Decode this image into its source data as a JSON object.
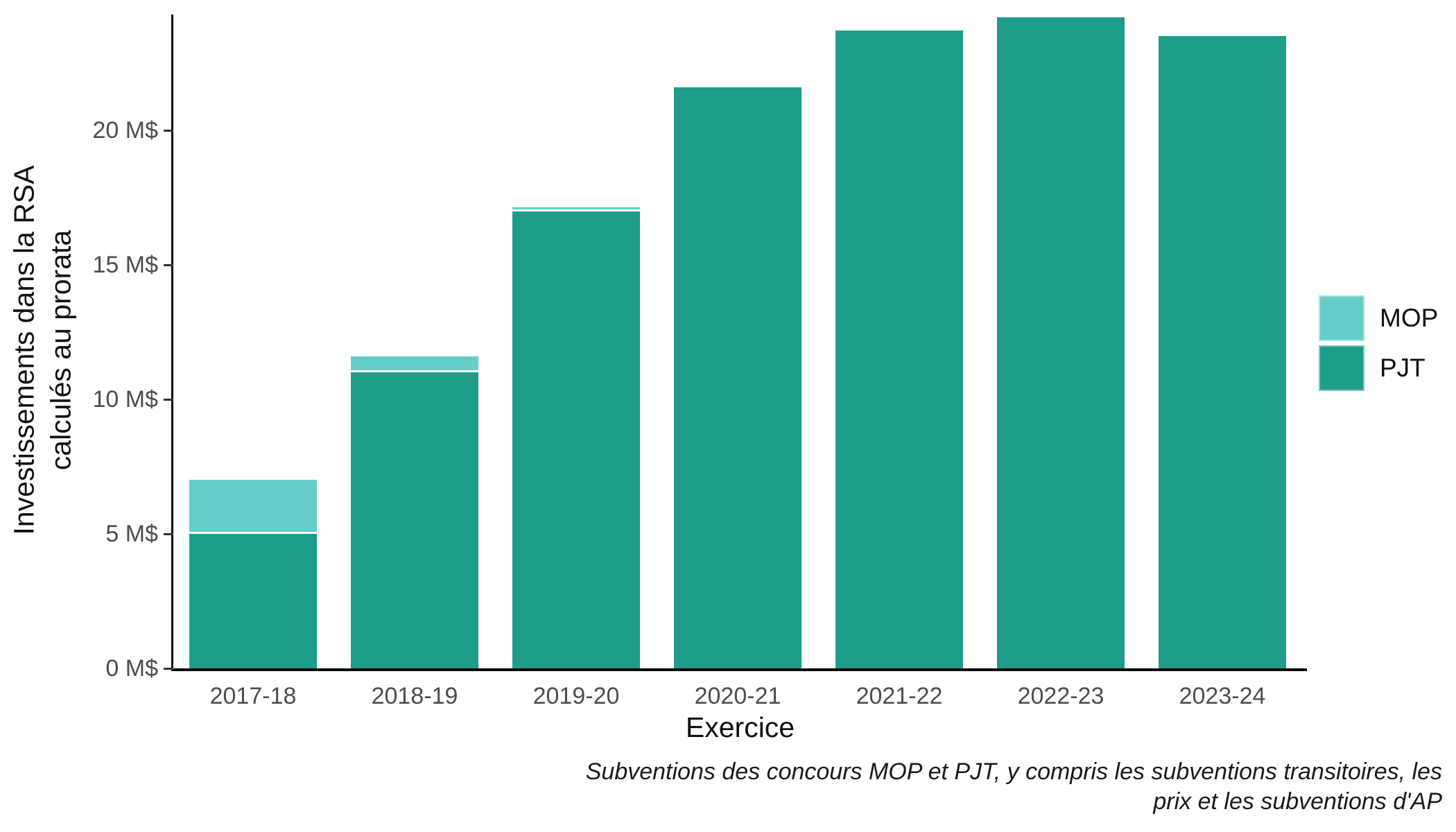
{
  "chart_data": {
    "type": "bar",
    "stacked": true,
    "title": "",
    "xlabel": "Exercice",
    "ylabel_lines": [
      "Investissements dans la RSA",
      "calculés au prorata"
    ],
    "categories": [
      "2017-18",
      "2018-19",
      "2019-20",
      "2020-21",
      "2021-22",
      "2022-23",
      "2023-24"
    ],
    "series": [
      {
        "name": "PJT",
        "color": "#1F9D8B",
        "values": [
          5.0,
          11.0,
          17.0,
          21.6,
          23.7,
          24.2,
          23.5
        ]
      },
      {
        "name": "MOP",
        "color": "#65CDC7",
        "values": [
          2.0,
          0.6,
          0.15,
          0,
          0,
          0,
          0
        ]
      }
    ],
    "stack_order_bottom_to_top": [
      "PJT",
      "MOP"
    ],
    "y_ticks": [
      {
        "value": 0,
        "label": "0 M$"
      },
      {
        "value": 5,
        "label": "5 M$"
      },
      {
        "value": 10,
        "label": "10 M$"
      },
      {
        "value": 15,
        "label": "15 M$"
      },
      {
        "value": 20,
        "label": "20 M$"
      }
    ],
    "ylim": [
      0,
      24.3
    ],
    "grid": false,
    "legend_position": "right",
    "caption_lines": [
      "Subventions des concours MOP et PJT, y compris les subventions transitoires, les",
      "prix et les subventions d'AP"
    ]
  },
  "legend": {
    "items": [
      {
        "label": "MOP",
        "color": "#65CDC7"
      },
      {
        "label": "PJT",
        "color": "#1F9D8B"
      }
    ]
  },
  "colors": {
    "background": "#FFFFFF",
    "axis_line": "#000000",
    "tick_mark": "#333333",
    "axis_text": "#4D4D4D",
    "title_text": "#111111",
    "mop": "#65CDC7",
    "pjt": "#1F9D8B"
  }
}
